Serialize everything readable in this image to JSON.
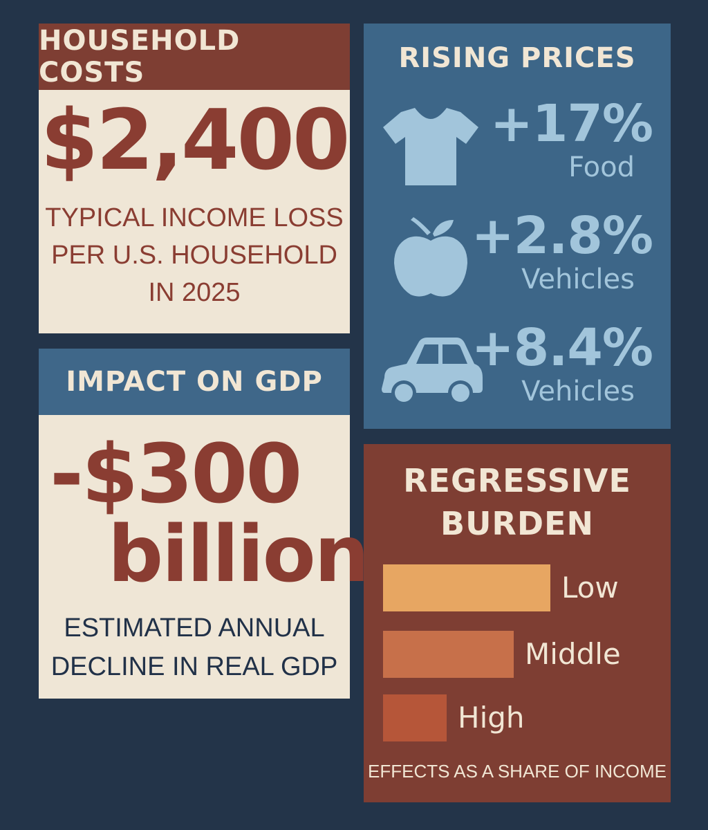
{
  "household": {
    "header": "HOUSEHOLD COSTS",
    "amount": "$2,400",
    "description_lines": [
      "TYPICAL INCOME LOSS",
      "PER U.S. HOUSEHOLD",
      "IN 2025"
    ],
    "colors": {
      "header_bg": "#7e3e33",
      "panel_bg": "#efe6d6",
      "accent": "#8a3d32"
    }
  },
  "gdp": {
    "header": "IMPACT ON GDP",
    "amount": "-$300",
    "unit": "billion",
    "description_lines": [
      "ESTIMATED ANNUAL",
      "DECLINE IN REAL GDP"
    ],
    "colors": {
      "header_bg": "#3f6789",
      "panel_bg": "#efe6d6",
      "accent": "#8a3d32"
    }
  },
  "prices": {
    "header": "RISING PRICES",
    "items": [
      {
        "icon": "tshirt-icon",
        "percent": "+17%",
        "category": "Food"
      },
      {
        "icon": "apple-icon",
        "percent": "+2.8%",
        "category": "Vehicles"
      },
      {
        "icon": "car-icon",
        "percent": "+8.4%",
        "category": "Vehicles"
      }
    ],
    "colors": {
      "panel_bg": "#3d6688",
      "accent": "#a2c5db"
    }
  },
  "burden": {
    "header_lines": [
      "REGRESSIVE",
      "BURDEN"
    ],
    "bars": [
      {
        "label": "Low",
        "relative_value": 1.0,
        "color": "#e7a662"
      },
      {
        "label": "Middle",
        "relative_value": 0.78,
        "color": "#c7704a"
      },
      {
        "label": "High",
        "relative_value": 0.38,
        "color": "#b65639"
      }
    ],
    "footnote": "EFFECTS AS A SHARE OF INCOME",
    "colors": {
      "panel_bg": "#7e3e33"
    }
  }
}
